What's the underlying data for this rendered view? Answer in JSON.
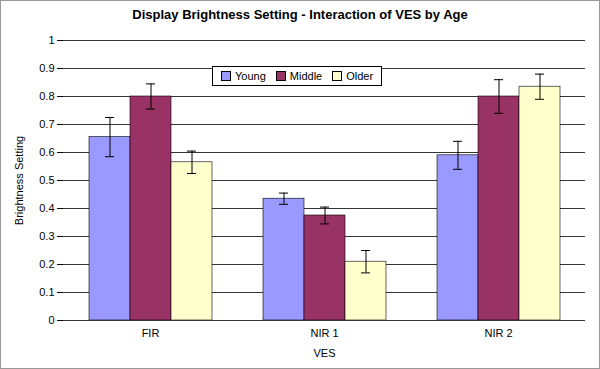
{
  "chart_data": {
    "type": "bar",
    "title": "Display Brightness Setting - Interaction of VES by Age",
    "x_label": "VES",
    "y_label": "Brightness Setting",
    "categories": [
      "FIR",
      "NIR 1",
      "NIR 2"
    ],
    "series": [
      {
        "name": "Young",
        "color": "#9999ff",
        "values": [
          0.655,
          0.435,
          0.59
        ],
        "errors": [
          0.07,
          0.02,
          0.05
        ]
      },
      {
        "name": "Middle",
        "color": "#993366",
        "values": [
          0.8,
          0.375,
          0.8
        ],
        "errors": [
          0.045,
          0.03,
          0.06
        ]
      },
      {
        "name": "Older",
        "color": "#ffffcc",
        "values": [
          0.565,
          0.21,
          0.835
        ],
        "errors": [
          0.04,
          0.04,
          0.045
        ]
      }
    ],
    "ylim": [
      0,
      1
    ],
    "yticks": [
      0,
      0.1,
      0.2,
      0.3,
      0.4,
      0.5,
      0.6,
      0.7,
      0.8,
      0.9,
      1
    ],
    "grid": true,
    "legend": "top"
  }
}
